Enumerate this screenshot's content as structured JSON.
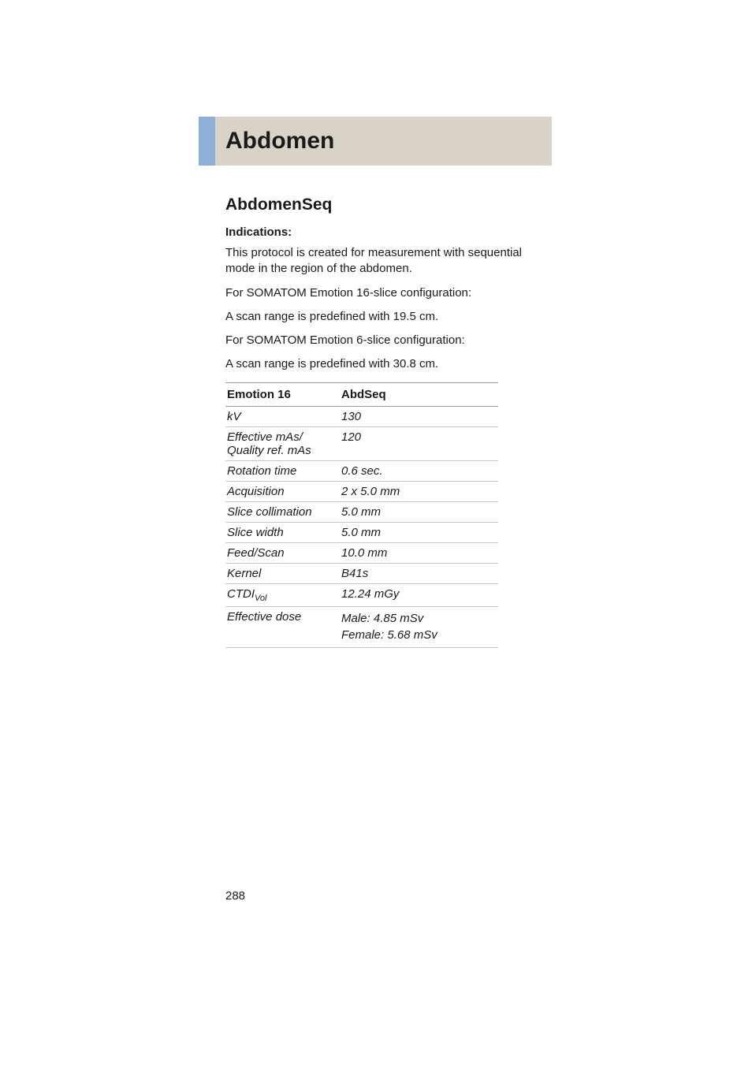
{
  "header": {
    "title": "Abdomen"
  },
  "section": {
    "subhead": "AbdomenSeq",
    "indications_label": "Indications:",
    "paragraphs": [
      "This protocol is created for measurement with sequential mode in the region of the abdomen.",
      "For SOMATOM Emotion 16-slice configuration:",
      "A scan range is predefined with 19.5 cm.",
      "For SOMATOM Emotion 6-slice configuration:",
      "A scan range is predefined with 30.8 cm."
    ]
  },
  "table": {
    "header_left": "Emotion 16",
    "header_right": "AbdSeq",
    "rows": [
      {
        "param": "kV",
        "value": "130"
      },
      {
        "param": "Effective mAs/\nQuality ref. mAs",
        "value": "120"
      },
      {
        "param": "Rotation time",
        "value": "0.6 sec."
      },
      {
        "param": "Acquisition",
        "value": "2 x 5.0 mm"
      },
      {
        "param": "Slice collimation",
        "value": "5.0 mm"
      },
      {
        "param": "Slice width",
        "value": "5.0 mm"
      },
      {
        "param": "Feed/Scan",
        "value": "10.0 mm"
      },
      {
        "param": "Kernel",
        "value": "B41s"
      }
    ],
    "ctdi_param": "CTDI",
    "ctdi_sub": "Vol",
    "ctdi_value": "12.24 mGy",
    "dose_param": "Effective dose",
    "dose_male": "Male: 4.85 mSv",
    "dose_female": "Female: 5.68 mSv"
  },
  "page_number": "288",
  "colors": {
    "band_bg": "#d9d3c7",
    "accent_bg": "#8fb0d6",
    "text": "#1a1a1a",
    "rule_strong": "#9a9a9a",
    "rule_light": "#c8c8c8",
    "page_bg": "#ffffff"
  }
}
